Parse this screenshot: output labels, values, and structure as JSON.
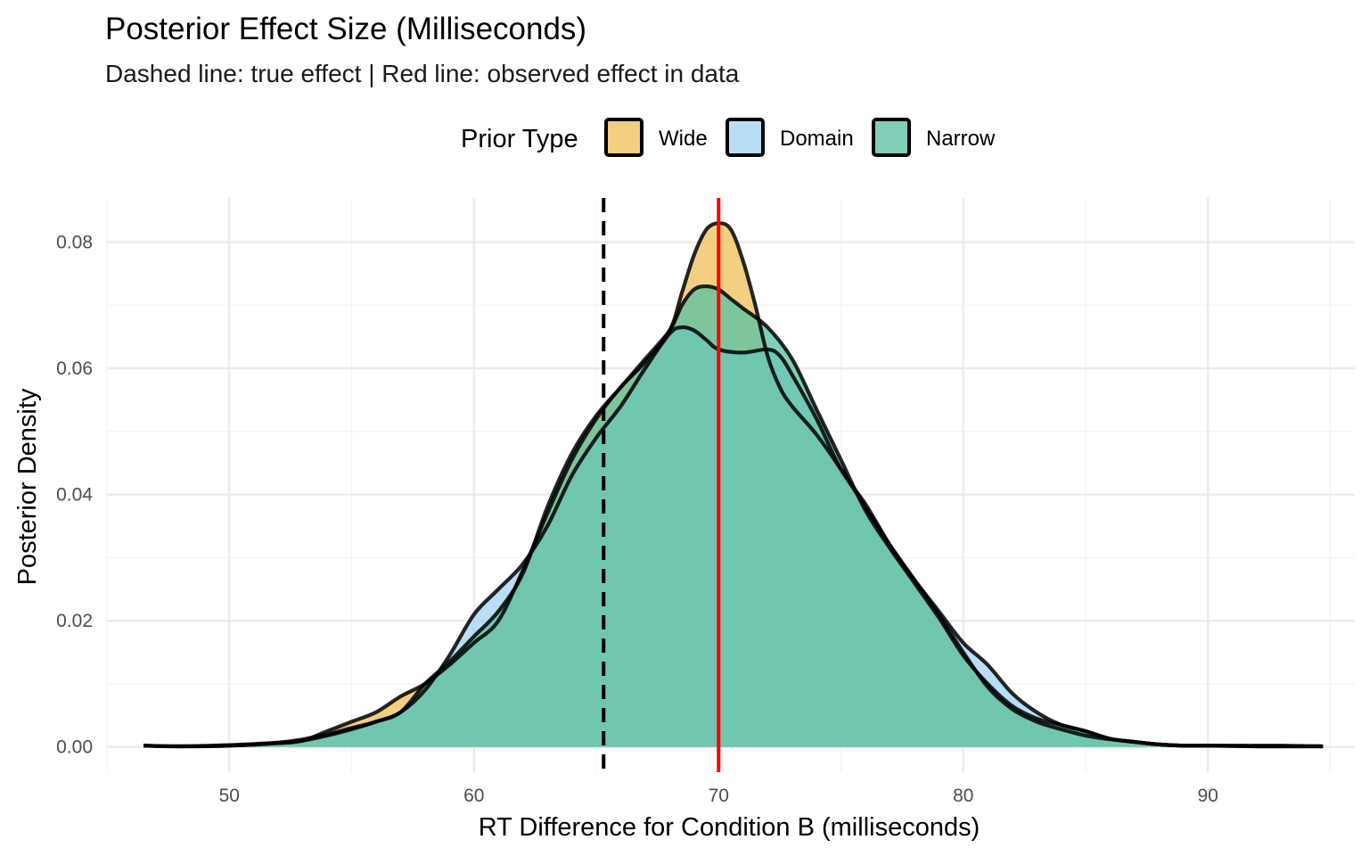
{
  "chart_data": {
    "type": "area",
    "title": "Posterior Effect Size (Milliseconds)",
    "subtitle": "Dashed line: true effect | Red line: observed effect in data",
    "xlabel": "RT Difference for Condition B (milliseconds)",
    "ylabel": "Posterior Density",
    "xlim": [
      45,
      96
    ],
    "ylim": [
      -0.004,
      0.087
    ],
    "x_ticks": [
      "50",
      "60",
      "70",
      "80",
      "90"
    ],
    "y_ticks": [
      "0.00",
      "0.02",
      "0.04",
      "0.06",
      "0.08"
    ],
    "grid": true,
    "legend": {
      "title": "Prior Type",
      "position": "top"
    },
    "reference_lines": [
      {
        "x": 65.3,
        "style": "dashed",
        "color": "#000000"
      },
      {
        "x": 70.0,
        "style": "solid",
        "color": "#ff0000"
      }
    ],
    "series": [
      {
        "name": "Wide",
        "color": "#f0c25f",
        "points": [
          [
            46.5,
            0.0002
          ],
          [
            48,
            0.0001
          ],
          [
            50,
            0.0002
          ],
          [
            52,
            0.0006
          ],
          [
            53,
            0.001
          ],
          [
            54,
            0.0025
          ],
          [
            55,
            0.004
          ],
          [
            56,
            0.0055
          ],
          [
            57,
            0.008
          ],
          [
            58,
            0.01
          ],
          [
            59,
            0.013
          ],
          [
            60,
            0.0165
          ],
          [
            61,
            0.02
          ],
          [
            62,
            0.028
          ],
          [
            63,
            0.037
          ],
          [
            64,
            0.0455
          ],
          [
            65,
            0.052
          ],
          [
            66,
            0.057
          ],
          [
            67,
            0.061
          ],
          [
            68,
            0.066
          ],
          [
            68.5,
            0.072
          ],
          [
            69,
            0.078
          ],
          [
            69.5,
            0.082
          ],
          [
            70,
            0.083
          ],
          [
            70.5,
            0.082
          ],
          [
            71,
            0.077
          ],
          [
            71.5,
            0.07
          ],
          [
            72,
            0.062
          ],
          [
            72.5,
            0.057
          ],
          [
            73,
            0.054
          ],
          [
            74,
            0.0495
          ],
          [
            75,
            0.044
          ],
          [
            76,
            0.038
          ],
          [
            77,
            0.032
          ],
          [
            78,
            0.0265
          ],
          [
            79,
            0.021
          ],
          [
            80,
            0.015
          ],
          [
            81,
            0.0095
          ],
          [
            82,
            0.006
          ],
          [
            83,
            0.004
          ],
          [
            84,
            0.0028
          ],
          [
            85,
            0.0018
          ],
          [
            86,
            0.0012
          ],
          [
            87,
            0.0008
          ],
          [
            88,
            0.0004
          ],
          [
            89,
            0.0002
          ],
          [
            90,
            0.0002
          ],
          [
            92,
            0.0002
          ],
          [
            93,
            0.0002
          ],
          [
            94.7,
            0.0001
          ]
        ]
      },
      {
        "name": "Domain",
        "color": "#a6d5f2",
        "points": [
          [
            46.5,
            0.0002
          ],
          [
            48,
            0.0001
          ],
          [
            50,
            0.0003
          ],
          [
            52,
            0.0007
          ],
          [
            53,
            0.0012
          ],
          [
            54,
            0.002
          ],
          [
            55,
            0.003
          ],
          [
            56,
            0.004
          ],
          [
            57,
            0.0055
          ],
          [
            58,
            0.009
          ],
          [
            59,
            0.0145
          ],
          [
            60,
            0.021
          ],
          [
            61,
            0.025
          ],
          [
            62,
            0.029
          ],
          [
            63,
            0.035
          ],
          [
            64,
            0.043
          ],
          [
            65,
            0.049
          ],
          [
            66,
            0.054
          ],
          [
            67,
            0.06
          ],
          [
            68,
            0.0655
          ],
          [
            68.5,
            0.0665
          ],
          [
            69,
            0.066
          ],
          [
            69.5,
            0.0645
          ],
          [
            70,
            0.063
          ],
          [
            71,
            0.0625
          ],
          [
            72,
            0.063
          ],
          [
            72.5,
            0.062
          ],
          [
            73,
            0.059
          ],
          [
            74,
            0.052
          ],
          [
            75,
            0.044
          ],
          [
            76,
            0.0385
          ],
          [
            77,
            0.032
          ],
          [
            78,
            0.0265
          ],
          [
            79,
            0.0215
          ],
          [
            80,
            0.0165
          ],
          [
            81,
            0.013
          ],
          [
            82,
            0.0085
          ],
          [
            83,
            0.0055
          ],
          [
            84,
            0.0035
          ],
          [
            85,
            0.0025
          ],
          [
            86,
            0.0013
          ],
          [
            87,
            0.0008
          ],
          [
            88,
            0.0004
          ],
          [
            89,
            0.0002
          ],
          [
            90,
            0.0002
          ],
          [
            92,
            0.0001
          ],
          [
            94.7,
            0.0001
          ]
        ]
      },
      {
        "name": "Narrow",
        "color": "#5dc1a4",
        "points": [
          [
            46.5,
            0.0002
          ],
          [
            48,
            0.0001
          ],
          [
            50,
            0.0002
          ],
          [
            52,
            0.0006
          ],
          [
            53,
            0.001
          ],
          [
            54,
            0.0018
          ],
          [
            55,
            0.0028
          ],
          [
            56,
            0.004
          ],
          [
            57,
            0.0055
          ],
          [
            58,
            0.01
          ],
          [
            59,
            0.0135
          ],
          [
            60,
            0.0175
          ],
          [
            61,
            0.0215
          ],
          [
            62,
            0.0275
          ],
          [
            63,
            0.038
          ],
          [
            64,
            0.0465
          ],
          [
            65,
            0.0525
          ],
          [
            66,
            0.057
          ],
          [
            67,
            0.0615
          ],
          [
            68,
            0.066
          ],
          [
            68.5,
            0.07
          ],
          [
            69,
            0.0725
          ],
          [
            69.5,
            0.073
          ],
          [
            70,
            0.0725
          ],
          [
            70.5,
            0.071
          ],
          [
            71,
            0.0695
          ],
          [
            72,
            0.0665
          ],
          [
            73,
            0.0615
          ],
          [
            74,
            0.0535
          ],
          [
            75,
            0.0455
          ],
          [
            76,
            0.0375
          ],
          [
            77,
            0.0315
          ],
          [
            78,
            0.026
          ],
          [
            79,
            0.0205
          ],
          [
            80,
            0.0145
          ],
          [
            81,
            0.01
          ],
          [
            82,
            0.0065
          ],
          [
            83,
            0.0045
          ],
          [
            84,
            0.0035
          ],
          [
            85,
            0.0025
          ],
          [
            86,
            0.0013
          ],
          [
            87,
            0.0008
          ],
          [
            88,
            0.0004
          ],
          [
            89,
            0.0002
          ],
          [
            90,
            0.0002
          ],
          [
            92,
            0.0001
          ],
          [
            94.7,
            0.0001
          ]
        ]
      }
    ]
  }
}
